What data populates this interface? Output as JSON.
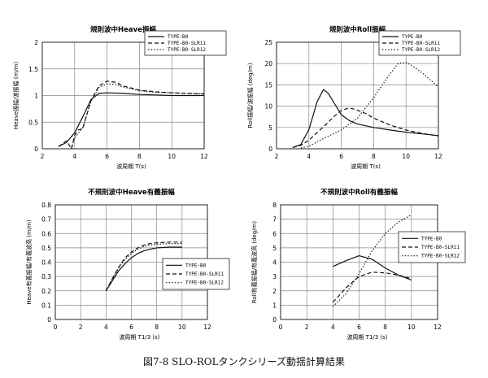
{
  "figure": {
    "caption": "図7-8 SLO-ROLタンクシリーズ動揺計算結果"
  },
  "chart_data": [
    {
      "type": "line",
      "title": "規則波中Heave振幅",
      "xlabel": "波周期 T(s)",
      "ylabel": "Heave振幅/波振幅 (m/m)",
      "xlim": [
        2,
        12
      ],
      "ylim": [
        0,
        2
      ],
      "xticks": [
        2,
        4,
        6,
        8,
        10,
        12
      ],
      "yticks": [
        0,
        0.5,
        1,
        1.5,
        2
      ],
      "xtick_labels": [
        "2",
        "4",
        "6",
        "8",
        "10",
        "12"
      ],
      "ytick_labels": [
        "0",
        "0.5",
        "1",
        "1.5",
        "2"
      ],
      "grid": true,
      "legend": "top-right",
      "series": [
        {
          "name": "TYPE-B0",
          "dash": "solid",
          "x": [
            3,
            3.5,
            4,
            4.5,
            5,
            5.5,
            6,
            7,
            8,
            9,
            10,
            11,
            12
          ],
          "values": [
            0.04,
            0.12,
            0.3,
            0.6,
            0.92,
            1.04,
            1.05,
            1.04,
            1.02,
            1.01,
            1.0,
            1.0,
            1.0
          ]
        },
        {
          "name": "TYPE-B0-SLR11",
          "dash": "dash",
          "x": [
            3,
            3.5,
            3.8,
            4,
            4.2,
            4.5,
            5,
            5.5,
            6,
            6.5,
            7,
            8,
            9,
            10,
            11,
            12
          ],
          "values": [
            0.04,
            0.15,
            0.0,
            0.25,
            0.35,
            0.38,
            0.9,
            1.18,
            1.27,
            1.25,
            1.18,
            1.1,
            1.07,
            1.05,
            1.04,
            1.03
          ]
        },
        {
          "name": "TYPE-B0-SLR12",
          "dash": "dot",
          "x": [
            3.8,
            4,
            4.5,
            5,
            5.5,
            6,
            6.5,
            7,
            8,
            9,
            10,
            11,
            12
          ],
          "values": [
            0.0,
            0.2,
            0.4,
            0.88,
            1.15,
            1.22,
            1.21,
            1.16,
            1.09,
            1.06,
            1.05,
            1.04,
            1.03
          ]
        }
      ]
    },
    {
      "type": "line",
      "title": "規則波中Roll振幅",
      "xlabel": "波周期 T(s)",
      "ylabel": "Roll振幅/波振幅 (deg/m)",
      "xlim": [
        2,
        12
      ],
      "ylim": [
        0,
        25
      ],
      "xticks": [
        2,
        4,
        6,
        8,
        10,
        12
      ],
      "yticks": [
        0,
        5,
        10,
        15,
        20,
        25
      ],
      "xtick_labels": [
        "2",
        "4",
        "6",
        "8",
        "10",
        "12"
      ],
      "ytick_labels": [
        "0",
        "5",
        "10",
        "15",
        "20",
        "25"
      ],
      "grid": true,
      "legend": "top-right",
      "series": [
        {
          "name": "TYPE-B0",
          "dash": "solid",
          "x": [
            3,
            3.5,
            4,
            4.5,
            4.9,
            5.2,
            5.6,
            6,
            6.5,
            7,
            8,
            9,
            10,
            11,
            12
          ],
          "values": [
            0.3,
            1.0,
            4.5,
            11.0,
            13.9,
            13.0,
            10.5,
            8.0,
            6.6,
            5.8,
            5.0,
            4.4,
            3.9,
            3.5,
            3.1
          ]
        },
        {
          "name": "TYPE-B0-SLR11",
          "dash": "dash",
          "x": [
            3,
            3.5,
            4,
            4.5,
            5,
            5.5,
            6,
            6.5,
            6.9,
            7.5,
            8,
            9,
            10,
            11,
            12
          ],
          "values": [
            0.3,
            0.8,
            2.0,
            3.8,
            5.5,
            7.4,
            9.0,
            9.6,
            9.2,
            8.3,
            7.2,
            5.6,
            4.4,
            3.6,
            3.0
          ]
        },
        {
          "name": "TYPE-B0-SLR12",
          "dash": "dot",
          "x": [
            3.5,
            4,
            4.5,
            5,
            6,
            7,
            8,
            9,
            9.5,
            10,
            10.5,
            11,
            12
          ],
          "values": [
            0.2,
            0.6,
            1.6,
            2.6,
            4.4,
            7.2,
            12.0,
            17.5,
            20.0,
            20.3,
            19.2,
            17.8,
            14.5
          ]
        }
      ]
    },
    {
      "type": "line",
      "title": "不規則波中Heave有義振幅",
      "xlabel": "波周期 T1/3 (s)",
      "ylabel": "Heave有義振幅/有義波高 (m/m)",
      "xlim": [
        0,
        12
      ],
      "ylim": [
        0,
        0.8
      ],
      "xticks": [
        0,
        2,
        4,
        6,
        8,
        10,
        12
      ],
      "yticks": [
        0,
        0.1,
        0.2,
        0.3,
        0.4,
        0.5,
        0.6,
        0.7,
        0.8
      ],
      "xtick_labels": [
        "0",
        "2",
        "4",
        "6",
        "8",
        "10",
        "12"
      ],
      "ytick_labels": [
        "0",
        "0.1",
        "0.2",
        "0.3",
        "0.4",
        "0.5",
        "0.6",
        "0.7",
        "0.8"
      ],
      "grid": true,
      "legend": "bottom-right",
      "series": [
        {
          "name": "TYPE-B0",
          "dash": "solid",
          "x": [
            4,
            4.5,
            5,
            5.5,
            6,
            6.5,
            7,
            7.5,
            8,
            9,
            10
          ],
          "values": [
            0.2,
            0.27,
            0.34,
            0.39,
            0.43,
            0.46,
            0.48,
            0.49,
            0.5,
            0.505,
            0.505
          ]
        },
        {
          "name": "TYPE-B0-SLR11",
          "dash": "dash",
          "x": [
            4,
            4.5,
            5,
            5.5,
            6,
            6.5,
            7,
            7.5,
            8,
            9,
            10
          ],
          "values": [
            0.2,
            0.285,
            0.365,
            0.43,
            0.47,
            0.5,
            0.52,
            0.53,
            0.535,
            0.54,
            0.54
          ]
        },
        {
          "name": "TYPE-B0-SLR12",
          "dash": "dot",
          "x": [
            4,
            4.5,
            5,
            5.5,
            6,
            6.5,
            7,
            7.5,
            8,
            9,
            10
          ],
          "values": [
            0.2,
            0.28,
            0.36,
            0.42,
            0.46,
            0.49,
            0.51,
            0.52,
            0.525,
            0.53,
            0.53
          ]
        }
      ]
    },
    {
      "type": "line",
      "title": "不規則波中Roll有義振幅",
      "xlabel": "波周期 T1/3 (s)",
      "ylabel": "Roll有義振幅/有義波高 (deg/m)",
      "xlim": [
        0,
        12
      ],
      "ylim": [
        0,
        8
      ],
      "xticks": [
        0,
        2,
        4,
        6,
        8,
        10,
        12
      ],
      "yticks": [
        0,
        1,
        2,
        3,
        4,
        5,
        6,
        7,
        8
      ],
      "xtick_labels": [
        "0",
        "2",
        "4",
        "6",
        "8",
        "10",
        "12"
      ],
      "ytick_labels": [
        "0",
        "1",
        "2",
        "3",
        "4",
        "5",
        "6",
        "7",
        "8"
      ],
      "grid": true,
      "legend": "right",
      "series": [
        {
          "name": "TYPE-B0",
          "dash": "solid",
          "x": [
            4,
            5,
            6,
            7,
            8,
            9,
            10
          ],
          "values": [
            3.7,
            4.1,
            4.45,
            4.2,
            3.6,
            3.1,
            2.75
          ]
        },
        {
          "name": "TYPE-B0-SLR11",
          "dash": "dash",
          "x": [
            4,
            5,
            6,
            7,
            8,
            9,
            10
          ],
          "values": [
            1.2,
            2.2,
            3.0,
            3.3,
            3.25,
            3.1,
            2.85
          ]
        },
        {
          "name": "TYPE-B0-SLR12",
          "dash": "dot",
          "x": [
            4,
            5,
            6,
            7,
            8,
            9,
            10
          ],
          "values": [
            0.9,
            1.8,
            3.2,
            4.8,
            6.0,
            6.8,
            7.3
          ]
        }
      ]
    }
  ]
}
